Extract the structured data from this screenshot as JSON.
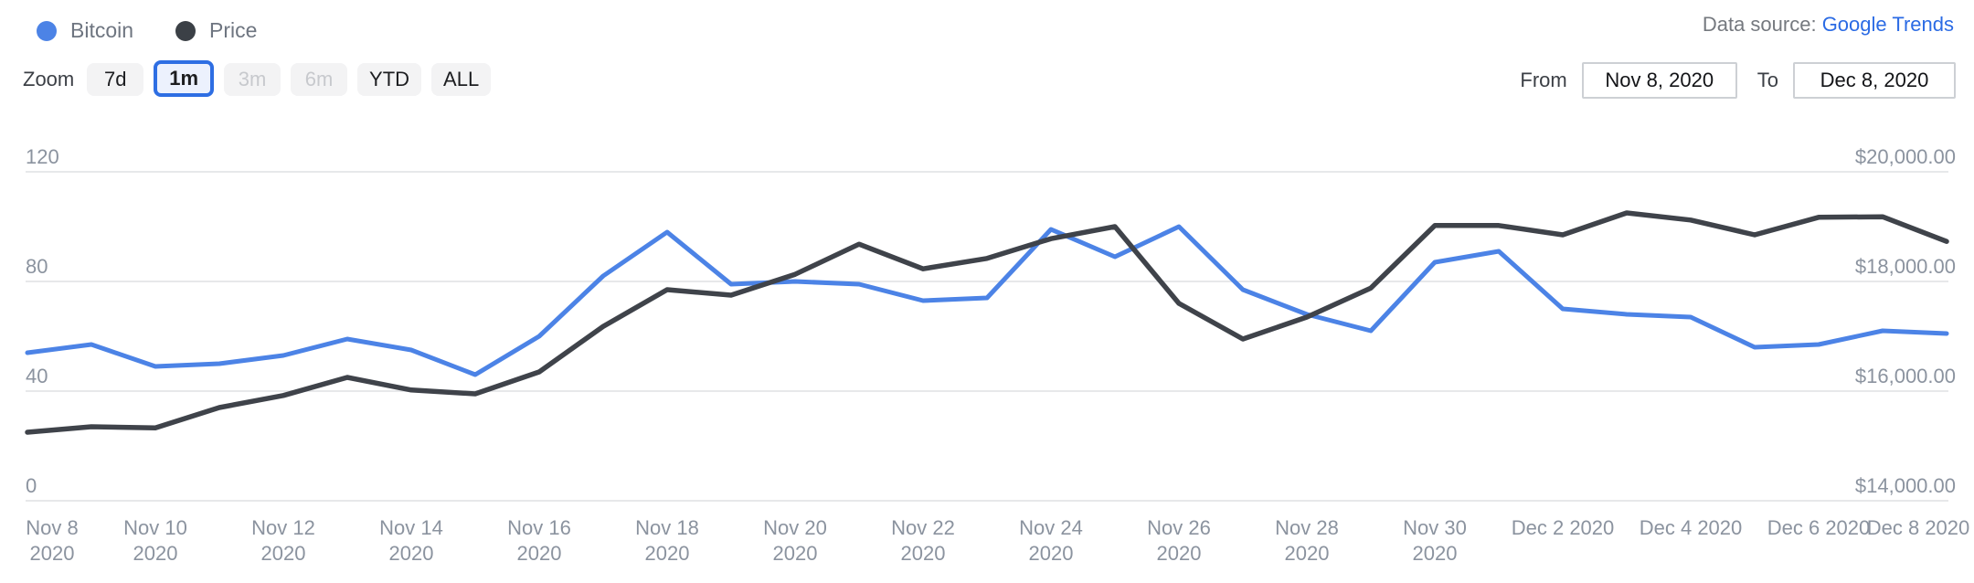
{
  "legend": {
    "items": [
      {
        "label": "Bitcoin",
        "color": "#4c83e6"
      },
      {
        "label": "Price",
        "color": "#3b4046"
      }
    ]
  },
  "header": {
    "data_source_label": "Data source: ",
    "data_source_link": "Google Trends",
    "link_color": "#2b6be4"
  },
  "toolbar": {
    "zoom_label": "Zoom",
    "buttons": [
      {
        "label": "7d",
        "state": "normal"
      },
      {
        "label": "1m",
        "state": "active"
      },
      {
        "label": "3m",
        "state": "disabled"
      },
      {
        "label": "6m",
        "state": "disabled"
      },
      {
        "label": "YTD",
        "state": "normal"
      },
      {
        "label": "ALL",
        "state": "normal"
      }
    ],
    "from_label": "From",
    "from_value": "Nov 8, 2020",
    "to_label": "To",
    "to_value": "Dec 8, 2020"
  },
  "chart_data": {
    "type": "line",
    "title": "",
    "grid": true,
    "x": [
      "Nov 8",
      "Nov 9",
      "Nov 10",
      "Nov 11",
      "Nov 12",
      "Nov 13",
      "Nov 14",
      "Nov 15",
      "Nov 16",
      "Nov 17",
      "Nov 18",
      "Nov 19",
      "Nov 20",
      "Nov 21",
      "Nov 22",
      "Nov 23",
      "Nov 24",
      "Nov 25",
      "Nov 26",
      "Nov 27",
      "Nov 28",
      "Nov 29",
      "Nov 30",
      "Dec 1",
      "Dec 2",
      "Dec 3",
      "Dec 4",
      "Dec 5",
      "Dec 6",
      "Dec 7",
      "Dec 8"
    ],
    "year": "2020",
    "series": [
      {
        "name": "Bitcoin",
        "axis": "left",
        "color": "#4c83e6",
        "width": 5,
        "values": [
          54,
          57,
          49,
          50,
          53,
          59,
          55,
          46,
          60,
          82,
          98,
          79,
          80,
          79,
          73,
          74,
          99,
          89,
          100,
          77,
          68,
          62,
          87,
          91,
          70,
          68,
          67,
          56,
          57,
          62,
          61
        ]
      },
      {
        "name": "Price",
        "axis": "right",
        "color": "#3f434a",
        "width": 5.5,
        "values": [
          15250,
          15350,
          15330,
          15700,
          15920,
          16250,
          16020,
          15950,
          16350,
          17180,
          17850,
          17750,
          18130,
          18680,
          18230,
          18420,
          18780,
          19000,
          17600,
          16950,
          17350,
          17880,
          19020,
          19020,
          18850,
          19250,
          19120,
          18850,
          19170,
          19180,
          18730
        ]
      }
    ],
    "y_axis_left": {
      "min": 0,
      "max": 120,
      "ticks": [
        120,
        80,
        40,
        0
      ],
      "label_color": "#8b939f"
    },
    "y_axis_right": {
      "min": 14000,
      "max": 20000,
      "tick_values": [
        20000,
        18000,
        16000,
        14000
      ],
      "tick_labels": [
        "$20,000.00",
        "$18,000.00",
        "$16,000.00",
        "$14,000.00"
      ]
    },
    "x_tick_labels": [
      {
        "line1": "Nov 8",
        "line2": "2020"
      },
      {
        "line1": "Nov 10",
        "line2": "2020"
      },
      {
        "line1": "Nov 12",
        "line2": "2020"
      },
      {
        "line1": "Nov 14",
        "line2": "2020"
      },
      {
        "line1": "Nov 16",
        "line2": "2020"
      },
      {
        "line1": "Nov 18",
        "line2": "2020"
      },
      {
        "line1": "Nov 20",
        "line2": "2020"
      },
      {
        "line1": "Nov 22",
        "line2": "2020"
      },
      {
        "line1": "Nov 24",
        "line2": "2020"
      },
      {
        "line1": "Nov 26",
        "line2": "2020"
      },
      {
        "line1": "Nov 28",
        "line2": "2020"
      },
      {
        "line1": "Nov 30",
        "line2": "2020"
      },
      {
        "line1": "Dec 2 2020",
        "line2": ""
      },
      {
        "line1": "Dec 4 2020",
        "line2": ""
      },
      {
        "line1": "Dec 6 2020",
        "line2": ""
      },
      {
        "line1": "Dec 8 2020",
        "line2": ""
      }
    ],
    "grid_color": "#e7e8ea"
  }
}
